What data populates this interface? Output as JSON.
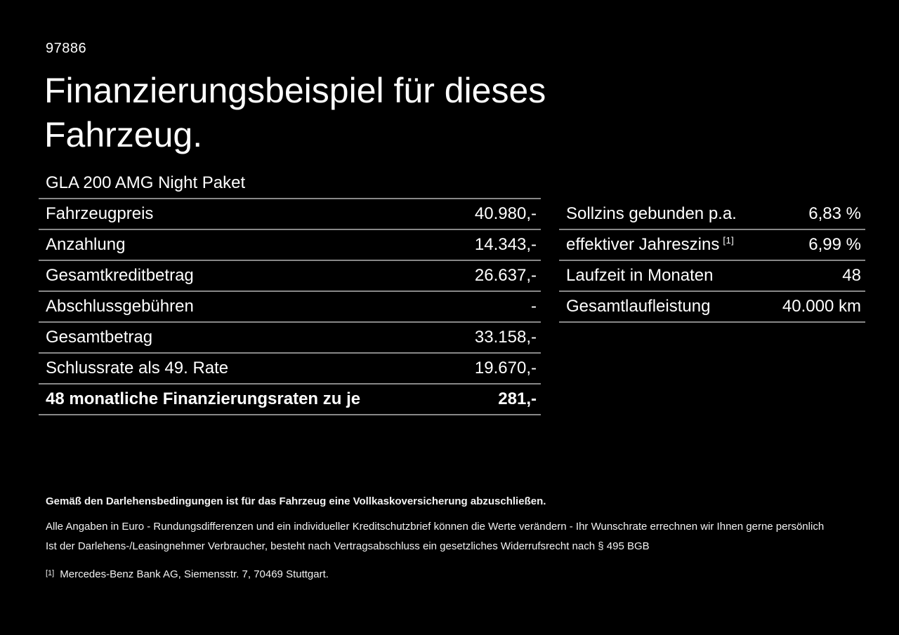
{
  "colors": {
    "background": "#000000",
    "text": "#ffffff",
    "divider": "#888888"
  },
  "page": {
    "ref_number": "97886",
    "title": "Finanzierungsbeispiel für dieses Fahrzeug."
  },
  "vehicle": {
    "model": "GLA 200 AMG Night Paket"
  },
  "finance_table": {
    "rows": [
      {
        "label": "Fahrzeugpreis",
        "value": "40.980,-"
      },
      {
        "label": "Anzahlung",
        "value": "14.343,-"
      },
      {
        "label": "Gesamtkreditbetrag",
        "value": "26.637,-"
      },
      {
        "label": "Abschlussgebühren",
        "value": "-"
      },
      {
        "label": "Gesamtbetrag",
        "value": "33.158,-"
      },
      {
        "label": "Schlussrate als 49. Rate",
        "value": "19.670,-"
      },
      {
        "label": "48 monatliche Finanzierungsraten zu je",
        "value": "281,-"
      }
    ]
  },
  "conditions_table": {
    "rows": [
      {
        "label": "Sollzins gebunden p.a.",
        "value": "6,83 %"
      },
      {
        "label": "effektiver Jahreszins",
        "sup": "[1]",
        "value": "6,99 %"
      },
      {
        "label": "Laufzeit in Monaten",
        "value": "48"
      },
      {
        "label": "Gesamtlaufleistung",
        "value": "40.000 km"
      }
    ]
  },
  "footer": {
    "insurance_note": "Gemäß den Darlehensbedingungen ist für das Fahrzeug eine Vollkaskoversicherung abzuschließen.",
    "disclaimer_line1": "Alle Angaben in Euro - Rundungsdifferenzen und ein individueller Kreditschutzbrief können die Werte verändern - Ihr Wunschrate errechnen wir Ihnen gerne persönlich",
    "disclaimer_line2": "Ist der Darlehens-/Leasingnehmer Verbraucher, besteht nach Vertragsabschluss ein gesetzliches Widerrufsrecht nach § 495 BGB",
    "footnote_marker": "[1]",
    "footnote_text": "Mercedes-Benz Bank AG, Siemensstr. 7, 70469 Stuttgart."
  }
}
